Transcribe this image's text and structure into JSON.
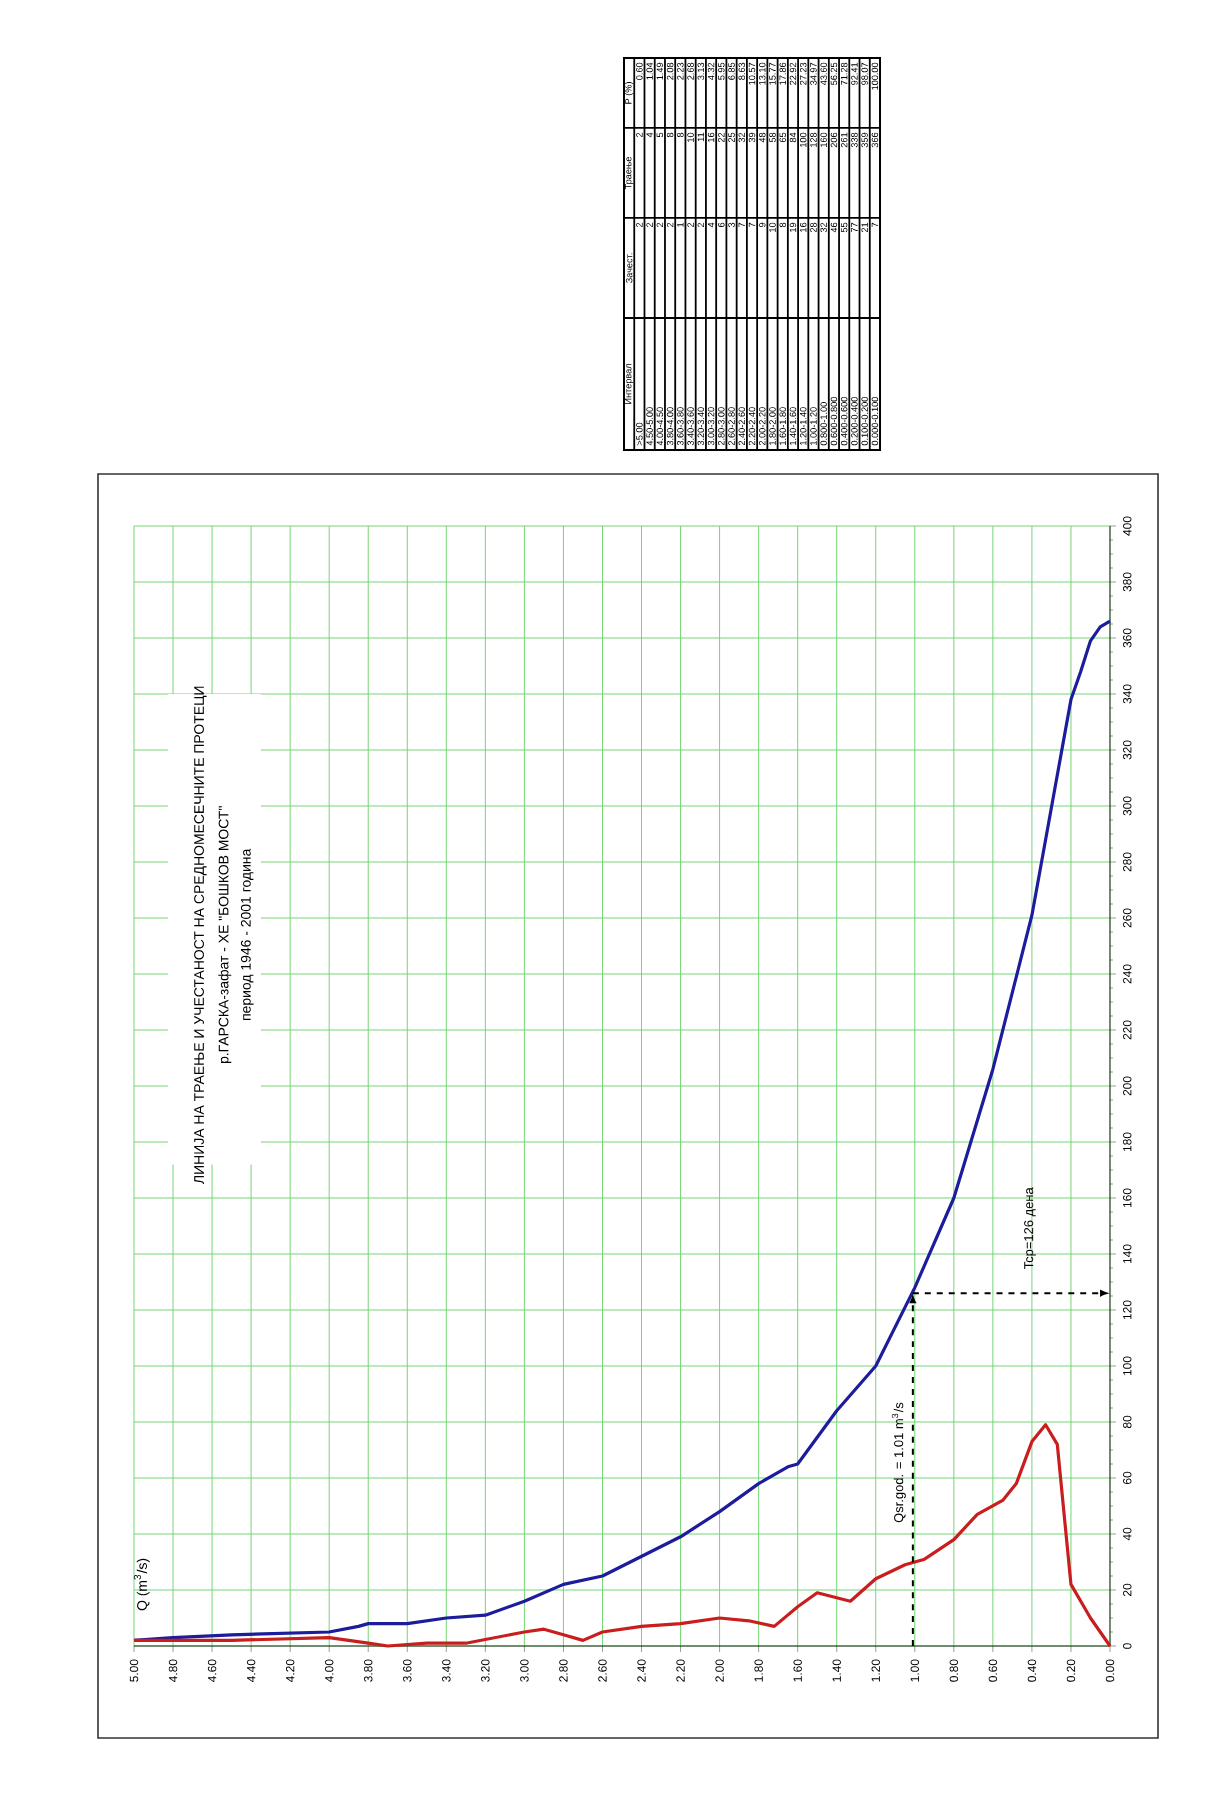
{
  "chart_data": [
    {
      "type": "line",
      "title": "ЛИНИЈА НА ТРАЕЊЕ И УЧЕСТАНОСТ НА СРЕДНОМЕСЕЧНИТЕ ПРОТЕЦИ",
      "subtitle": "р.ГАРСКА-зафат - ХЕ \"БОШКОВ МОСТ\"",
      "annotations": [
        "период 1946 - 2001 година",
        "Q (m$^{3}$/s)"
      ],
      "xlim": [
        5,
        0
      ],
      "xticks": [
        {
          "value": 5,
          "label": "5.00"
        },
        {
          "value": 4.8,
          "label": "4.80"
        },
        {
          "value": 4.6,
          "label": "4.60"
        },
        {
          "value": 4.4,
          "label": "4.40"
        },
        {
          "value": 4.2,
          "label": "4.20"
        },
        {
          "value": 4,
          "label": "4.00"
        },
        {
          "value": 3.8,
          "label": "3.80"
        },
        {
          "value": 3.6,
          "label": "3.60"
        },
        {
          "value": 3.4,
          "label": "3.40"
        },
        {
          "value": 3.2,
          "label": "3.20"
        },
        {
          "value": 3,
          "label": "3.00"
        },
        {
          "value": 2.8,
          "label": "2.80"
        },
        {
          "value": 2.6,
          "label": "2.60"
        },
        {
          "value": 2.4,
          "label": "2.40"
        },
        {
          "value": 2.2,
          "label": "2.20"
        },
        {
          "value": 2,
          "label": "2.00"
        },
        {
          "value": 1.8,
          "label": "1.80"
        },
        {
          "value": 1.6,
          "label": "1.60"
        },
        {
          "value": 1.4,
          "label": "1.40"
        },
        {
          "value": 1.2,
          "label": "1.20"
        },
        {
          "value": 1,
          "label": "1.00"
        },
        {
          "value": 0.8,
          "label": "0.80"
        },
        {
          "value": 0.6,
          "label": "0.60"
        },
        {
          "value": 0.4,
          "label": "0.40"
        },
        {
          "value": 0.2,
          "label": "0.20"
        },
        {
          "value": 0,
          "label": "0.00"
        }
      ],
      "ylim": [
        0,
        400
      ],
      "yticks": [
        0,
        20,
        40,
        60,
        80,
        100,
        120,
        140,
        160,
        180,
        200,
        220,
        240,
        260,
        280,
        300,
        320,
        340,
        360,
        380,
        400
      ],
      "grid": true,
      "series": [
        {
          "color": "#1c1c9c",
          "x": [
            5.0,
            4.8,
            4.5,
            4.0,
            3.85,
            3.8,
            3.6,
            3.4,
            3.2,
            3.0,
            2.8,
            2.6,
            2.4,
            2.2,
            2.0,
            1.8,
            1.65,
            1.6,
            1.4,
            1.2,
            1.0,
            0.8,
            0.6,
            0.4,
            0.2,
            0.15,
            0.1,
            0.05,
            0.0
          ],
          "values": [
            2,
            3,
            4,
            5,
            7,
            8,
            8,
            10,
            11,
            16,
            22,
            25,
            32,
            39,
            48,
            58,
            64,
            65,
            84,
            100,
            128,
            160,
            206,
            261,
            338,
            348,
            359,
            364,
            366
          ]
        },
        {
          "color": "#c81e1e",
          "x": [
            5.0,
            4.5,
            4.0,
            3.8,
            3.7,
            3.5,
            3.3,
            3.0,
            2.9,
            2.8,
            2.7,
            2.6,
            2.4,
            2.2,
            2.0,
            1.85,
            1.72,
            1.6,
            1.5,
            1.33,
            1.2,
            1.05,
            0.95,
            0.8,
            0.68,
            0.55,
            0.48,
            0.4,
            0.33,
            0.27,
            0.2,
            0.1,
            0.0
          ],
          "values": [
            2,
            2,
            3,
            1,
            0,
            1,
            1,
            5,
            6,
            4,
            2,
            5,
            7,
            8,
            10,
            9,
            7,
            14,
            19,
            16,
            24,
            29,
            31,
            38,
            47,
            52,
            58,
            73,
            79,
            72,
            22,
            10,
            0
          ]
        }
      ],
      "ref_lines": [
        {
          "axis": "x",
          "value": 1.01,
          "label": "Qsr.god. = 1.01 m$^{3}$/s",
          "line_style": "dashed"
        },
        {
          "axis": "y",
          "value": 126,
          "label": "Tcp=126 дена",
          "line_style": "dashed"
        }
      ]
    },
    {
      "type": "other",
      "categories": [
        "Интервал",
        "Зачест.",
        "Траење",
        "P (%)"
      ],
      "annotations": [
        ">5.00",
        "2",
        "2",
        "0.60",
        "4.50-5.00",
        "2",
        "4",
        "1.04",
        "4.00-4.50",
        "2",
        "5",
        "1.49",
        "3.80-4.00",
        "2",
        "8",
        "2.08",
        "3.60-3.80",
        "1",
        "8",
        "2.23",
        "3.40-3.60",
        "2",
        "10",
        "2.68",
        "3.20-3.40",
        "2",
        "11",
        "3.13",
        "3.00-3.20",
        "4",
        "16",
        "4.32",
        "2.80-3.00",
        "6",
        "22",
        "5.95",
        "2.60-2.80",
        "3",
        "25",
        "6.85",
        "2.40-2.60",
        "7",
        "32",
        "8.63",
        "2.20-2.40",
        "7",
        "39",
        "10.57",
        "2.00-2.20",
        "9",
        "48",
        "13.10",
        "1.80-2.00",
        "10",
        "58",
        "15.77",
        "1.60-1.80",
        "8",
        "65",
        "17.86",
        "1.40-1.60",
        "19",
        "84",
        "22.92",
        "1.20-1.40",
        "16",
        "100",
        "27.23",
        "1.00-1.20",
        "28",
        "128",
        "34.97",
        "0.800-1.00",
        "32",
        "160",
        "43.60",
        "0.600-0.800",
        "46",
        "206",
        "56.25",
        "0.400-0.600",
        "55",
        "261",
        "71.28",
        "0.200-0.400",
        "77",
        "338",
        "92.41",
        "0.100-0.200",
        "21",
        "359",
        "98.07",
        "0.000-0.100",
        "7",
        "366",
        "100.00"
      ]
    }
  ]
}
